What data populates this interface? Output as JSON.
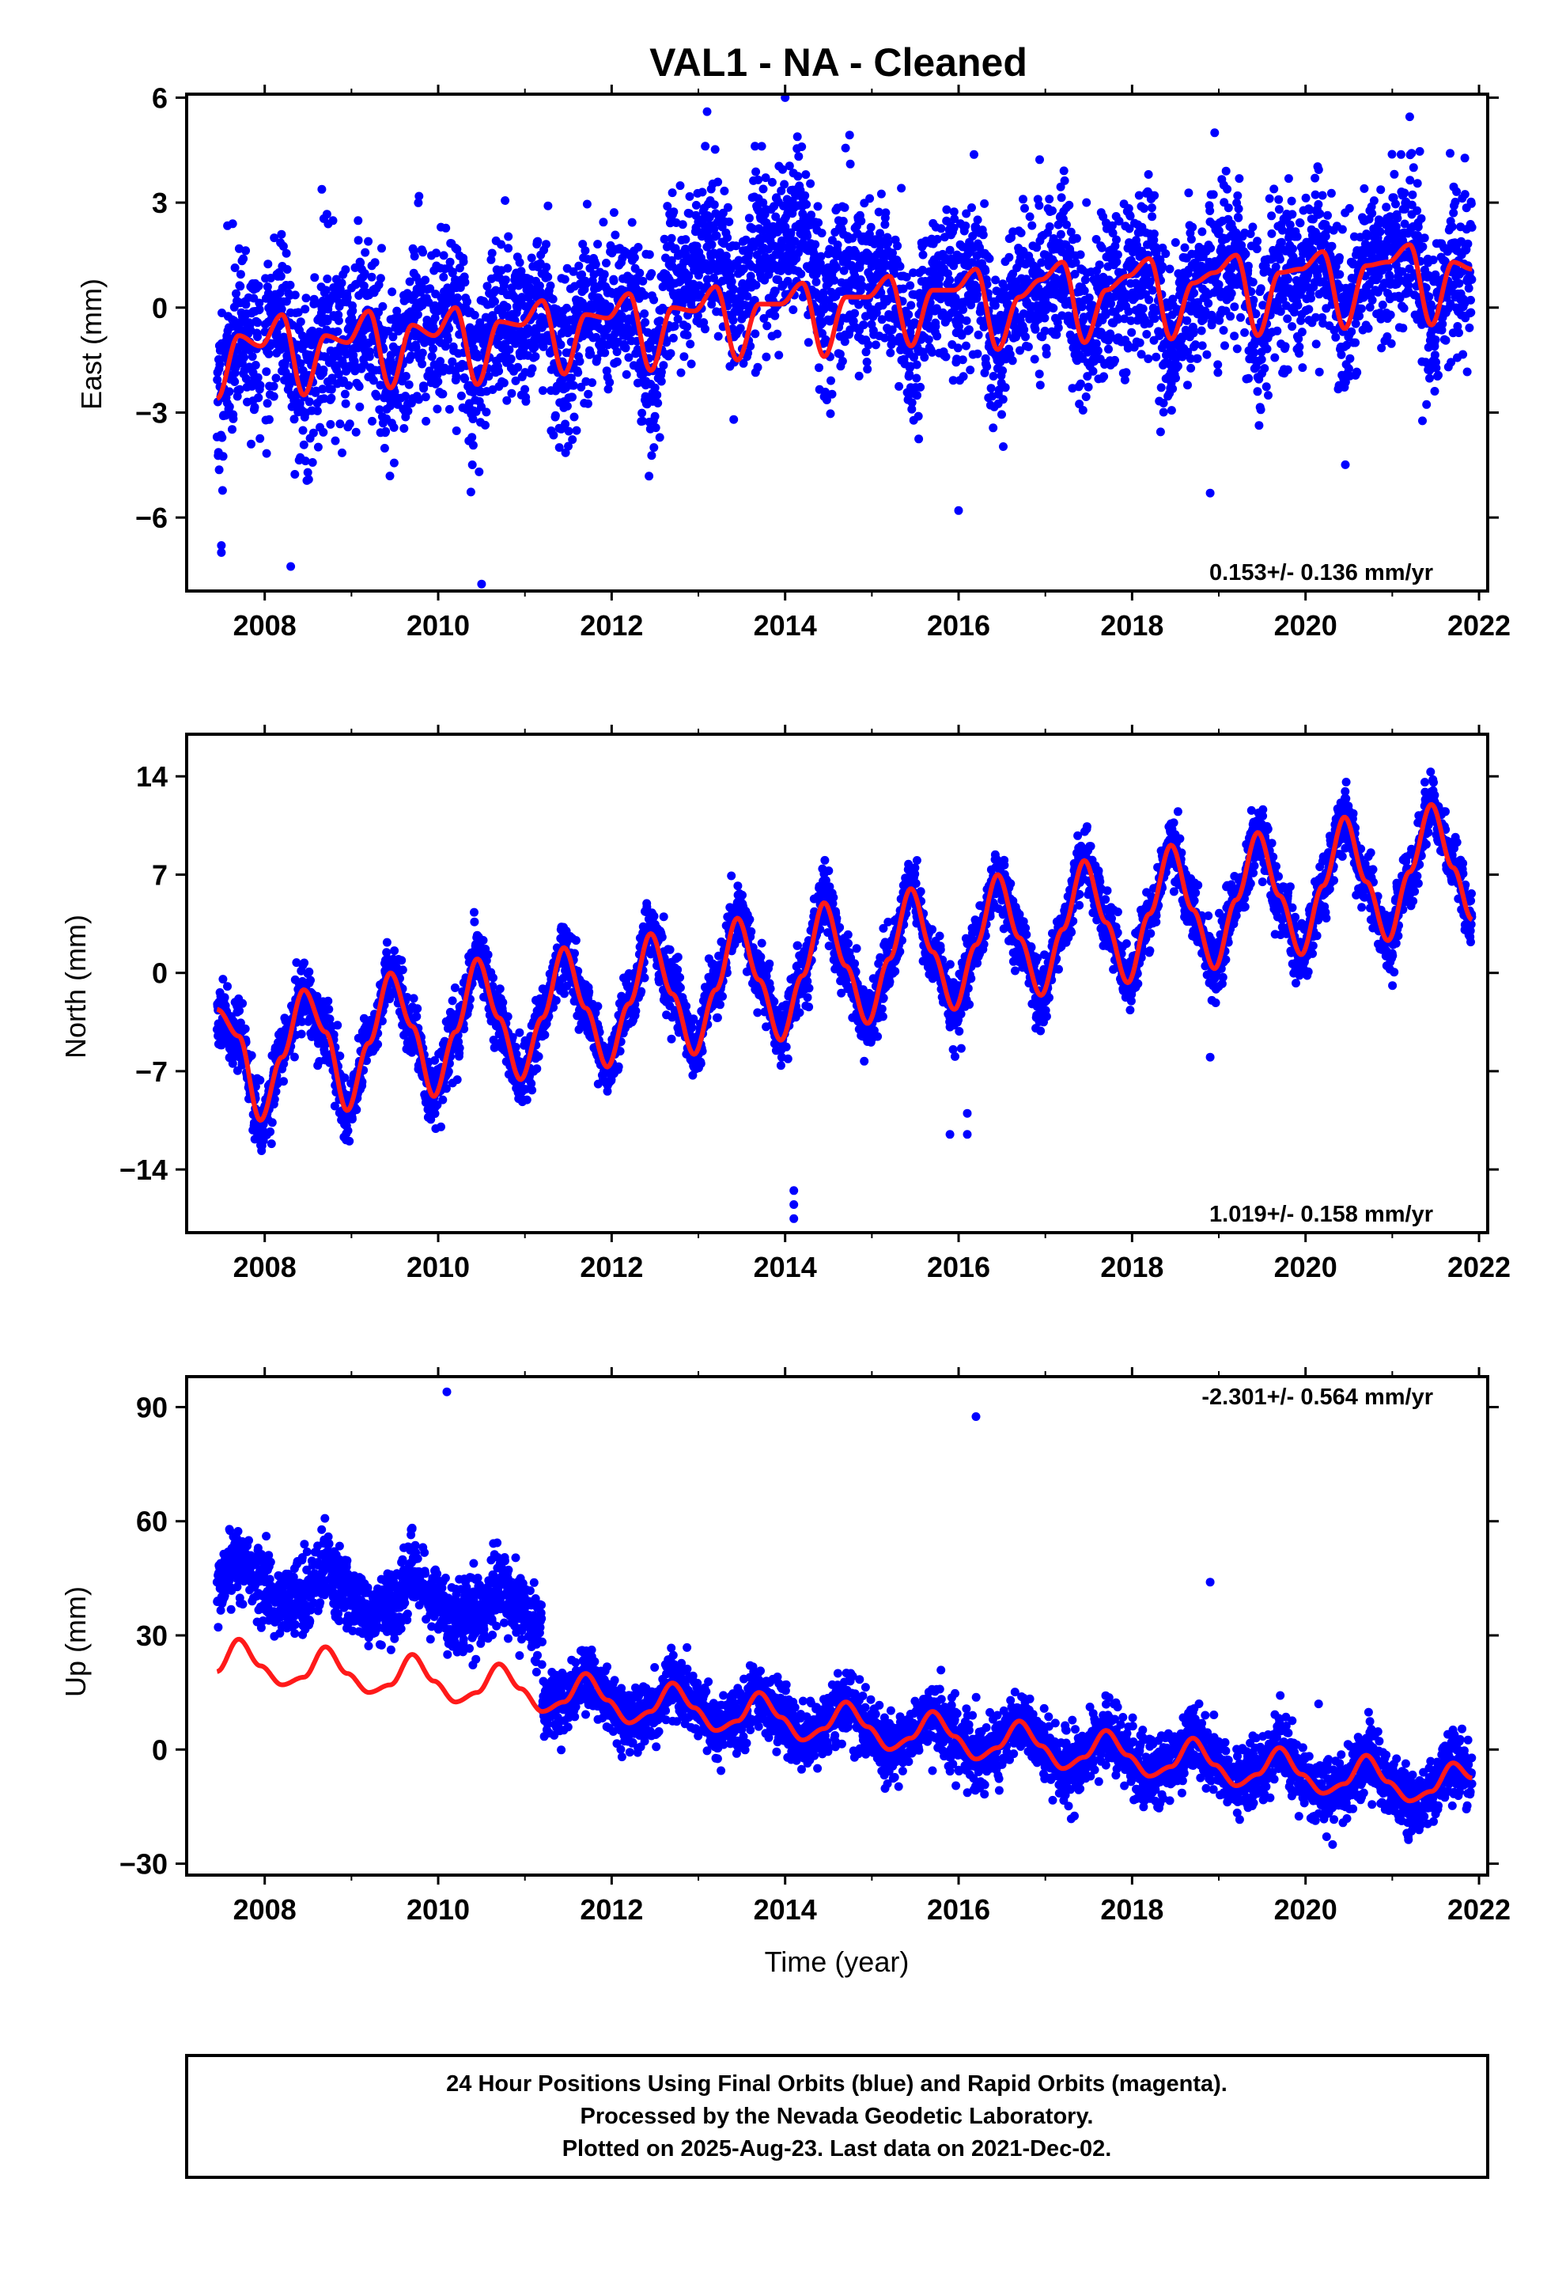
{
  "title": "VAL1  - NA - Cleaned",
  "colors": {
    "final_orbits": "#0000ff",
    "model_fit": "#ff1a1a",
    "frame": "#000000"
  },
  "caption": {
    "line1": "24 Hour Positions Using Final Orbits (blue) and Rapid Orbits (magenta).",
    "line2": "Processed by the Nevada Geodetic Laboratory.",
    "line3": "Plotted on 2025-Aug-23. Last data on 2021-Dec-02."
  },
  "chart_data": [
    {
      "type": "scatter",
      "component": "East",
      "ylabel": "East (mm)",
      "xlabel": "",
      "xlim": [
        2007.1,
        2022.1
      ],
      "ylim": [
        -8.1,
        6.1
      ],
      "x_ticks": [
        2008,
        2010,
        2012,
        2014,
        2016,
        2018,
        2020,
        2022
      ],
      "x_tick_labels": [
        "2008",
        "2010",
        "2012",
        "2014",
        "2016",
        "2018",
        "2020",
        "2022"
      ],
      "y_ticks": [
        -6,
        -3,
        0,
        3,
        6
      ],
      "y_tick_labels": [
        "−6",
        "−3",
        "0",
        "3",
        "6"
      ],
      "rate_label": "0.153+/- 0.136 mm/yr",
      "rate_position": "bottom-right",
      "data_range": [
        2007.45,
        2021.92
      ],
      "fit_curve": {
        "x": [
          2007.45,
          2007.7,
          2007.95,
          2008.2,
          2008.45,
          2008.7,
          2008.95,
          2009.2,
          2009.45,
          2009.7,
          2009.95,
          2010.2,
          2010.45,
          2010.7,
          2010.95,
          2011.2,
          2011.45,
          2011.7,
          2011.95,
          2012.2,
          2012.45,
          2012.7,
          2012.95,
          2013.2,
          2013.45,
          2013.7,
          2013.95,
          2014.2,
          2014.45,
          2014.7,
          2014.95,
          2015.2,
          2015.45,
          2015.7,
          2015.95,
          2016.2,
          2016.45,
          2016.7,
          2016.95,
          2017.2,
          2017.45,
          2017.7,
          2017.95,
          2018.2,
          2018.45,
          2018.7,
          2018.95,
          2019.2,
          2019.45,
          2019.7,
          2019.95,
          2020.2,
          2020.45,
          2020.7,
          2020.95,
          2021.2,
          2021.45,
          2021.7,
          2021.92
        ],
        "y": [
          -2.6,
          -0.8,
          -1.1,
          -0.2,
          -2.5,
          -0.8,
          -1.0,
          -0.1,
          -2.3,
          -0.5,
          -0.8,
          0.0,
          -2.2,
          -0.4,
          -0.5,
          0.2,
          -1.9,
          -0.2,
          -0.3,
          0.4,
          -1.8,
          0.0,
          -0.1,
          0.6,
          -1.5,
          0.1,
          0.1,
          0.7,
          -1.4,
          0.3,
          0.3,
          0.9,
          -1.1,
          0.5,
          0.5,
          1.1,
          -1.2,
          0.3,
          0.8,
          1.3,
          -1.0,
          0.5,
          0.9,
          1.4,
          -0.9,
          0.7,
          1.0,
          1.5,
          -0.8,
          1.0,
          1.1,
          1.6,
          -0.6,
          1.2,
          1.3,
          1.8,
          -0.5,
          1.3,
          1.1
        ]
      },
      "scatter_model": {
        "points": 4800,
        "seed": 11,
        "offset": 0,
        "step_2011": 0,
        "scatter_sd": 1.15,
        "bulge_2012_2015": 1.6,
        "outliers": [
          [
            2007.5,
            -6.8
          ],
          [
            2007.5,
            -7.0
          ],
          [
            2008.3,
            -7.4
          ],
          [
            2010.5,
            -7.9
          ],
          [
            2016.0,
            -5.8
          ],
          [
            2018.9,
            -5.3
          ],
          [
            2014.0,
            6.0
          ],
          [
            2013.1,
            5.6
          ]
        ]
      }
    },
    {
      "type": "scatter",
      "component": "North",
      "ylabel": "North (mm)",
      "xlabel": "",
      "xlim": [
        2007.1,
        2022.1
      ],
      "ylim": [
        -18.5,
        17.0
      ],
      "x_ticks": [
        2008,
        2010,
        2012,
        2014,
        2016,
        2018,
        2020,
        2022
      ],
      "x_tick_labels": [
        "2008",
        "2010",
        "2012",
        "2014",
        "2016",
        "2018",
        "2020",
        "2022"
      ],
      "y_ticks": [
        -14,
        -7,
        0,
        7,
        14
      ],
      "y_tick_labels": [
        "−14",
        "−7",
        "0",
        "7",
        "14"
      ],
      "rate_label": "1.019+/- 0.158 mm/yr",
      "rate_position": "bottom-right",
      "data_range": [
        2007.45,
        2021.92
      ],
      "fit_curve": {
        "x": [
          2007.45,
          2007.7,
          2007.95,
          2008.2,
          2008.45,
          2008.7,
          2008.95,
          2009.2,
          2009.45,
          2009.7,
          2009.95,
          2010.2,
          2010.45,
          2010.7,
          2010.95,
          2011.2,
          2011.45,
          2011.7,
          2011.95,
          2012.2,
          2012.45,
          2012.7,
          2012.95,
          2013.2,
          2013.45,
          2013.7,
          2013.95,
          2014.2,
          2014.45,
          2014.7,
          2014.95,
          2015.2,
          2015.45,
          2015.7,
          2015.95,
          2016.2,
          2016.45,
          2016.7,
          2016.95,
          2017.2,
          2017.45,
          2017.7,
          2017.95,
          2018.2,
          2018.45,
          2018.7,
          2018.95,
          2019.2,
          2019.45,
          2019.7,
          2019.95,
          2020.2,
          2020.45,
          2020.7,
          2020.95,
          2021.2,
          2021.45,
          2021.7,
          2021.92
        ],
        "y": [
          -2.6,
          -4.5,
          -10.5,
          -6.0,
          -1.2,
          -4.2,
          -9.8,
          -5.0,
          0.0,
          -3.8,
          -8.8,
          -4.2,
          1.0,
          -3.2,
          -7.6,
          -3.2,
          1.8,
          -2.5,
          -6.7,
          -2.2,
          2.8,
          -1.5,
          -5.8,
          -1.2,
          3.9,
          -0.5,
          -4.8,
          -0.2,
          5.0,
          0.5,
          -3.6,
          1.0,
          6.0,
          1.5,
          -2.6,
          2.0,
          7.0,
          2.5,
          -1.6,
          3.1,
          8.0,
          3.6,
          -0.7,
          4.2,
          9.1,
          4.5,
          0.3,
          5.2,
          10.0,
          5.5,
          1.3,
          6.2,
          11.1,
          6.5,
          2.3,
          7.2,
          12.0,
          7.5,
          3.8
        ]
      },
      "scatter_model": {
        "points": 4800,
        "seed": 23,
        "offset": 0,
        "step_2011": 0,
        "scatter_sd": 1.1,
        "bulge_2012_2015": 0.4,
        "outliers": [
          [
            2014.1,
            -16.5
          ],
          [
            2014.1,
            -15.5
          ],
          [
            2014.1,
            -17.5
          ],
          [
            2015.9,
            -11.5
          ],
          [
            2016.1,
            -10.0
          ],
          [
            2016.1,
            -11.5
          ],
          [
            2018.9,
            -6.0
          ],
          [
            2012.6,
            4.0
          ]
        ]
      }
    },
    {
      "type": "scatter",
      "component": "Up",
      "ylabel": "Up (mm)",
      "xlabel": "Time (year)",
      "xlim": [
        2007.1,
        2022.1
      ],
      "ylim": [
        -33,
        98
      ],
      "x_ticks": [
        2008,
        2010,
        2012,
        2014,
        2016,
        2018,
        2020,
        2022
      ],
      "x_tick_labels": [
        "2008",
        "2010",
        "2012",
        "2014",
        "2016",
        "2018",
        "2020",
        "2022"
      ],
      "y_ticks": [
        -30,
        0,
        30,
        60,
        90
      ],
      "y_tick_labels": [
        "−30",
        "0",
        "30",
        "60",
        "90"
      ],
      "rate_label": "-2.301+/- 0.564 mm/yr",
      "rate_position": "top-right",
      "data_range": [
        2007.45,
        2021.92
      ],
      "fit_curve": {
        "x": [
          2007.45,
          2007.7,
          2007.95,
          2008.2,
          2008.45,
          2008.7,
          2008.95,
          2009.2,
          2009.45,
          2009.7,
          2009.95,
          2010.2,
          2010.45,
          2010.7,
          2010.95,
          2011.2,
          2011.45,
          2011.7,
          2011.95,
          2012.2,
          2012.45,
          2012.7,
          2012.95,
          2013.2,
          2013.45,
          2013.7,
          2013.95,
          2014.2,
          2014.45,
          2014.7,
          2014.95,
          2015.2,
          2015.45,
          2015.7,
          2015.95,
          2016.2,
          2016.45,
          2016.7,
          2016.95,
          2017.2,
          2017.45,
          2017.7,
          2017.95,
          2018.2,
          2018.45,
          2018.7,
          2018.95,
          2019.2,
          2019.45,
          2019.7,
          2019.95,
          2020.2,
          2020.45,
          2020.7,
          2020.95,
          2021.2,
          2021.45,
          2021.7,
          2021.92
        ],
        "y": [
          20.5,
          29.0,
          22.0,
          17.0,
          19.0,
          27.0,
          20.0,
          15.0,
          17.0,
          25.0,
          18.0,
          12.5,
          15.0,
          22.5,
          16.0,
          10.0,
          12.5,
          20.0,
          13.0,
          7.0,
          10.0,
          17.5,
          11.0,
          5.0,
          7.5,
          15.0,
          8.5,
          2.5,
          5.5,
          12.5,
          6.0,
          0.0,
          3.0,
          10.0,
          3.5,
          -2.5,
          0.5,
          7.5,
          1.0,
          -5.0,
          -2.0,
          5.0,
          -1.5,
          -7.0,
          -4.5,
          3.0,
          -4.0,
          -9.5,
          -6.5,
          0.5,
          -6.5,
          -11.5,
          -9.0,
          -1.5,
          -8.5,
          -13.5,
          -11.0,
          -3.5,
          -7.5
        ]
      },
      "scatter_model": {
        "points": 4800,
        "seed": 37,
        "offset": 21,
        "step_2011": -21,
        "scatter_sd": 4.2,
        "bulge_2012_2015": 0,
        "outliers": [
          [
            2010.1,
            94.0
          ],
          [
            2016.2,
            87.5
          ],
          [
            2018.9,
            44.0
          ],
          [
            2009.7,
            58.0
          ],
          [
            2020.15,
            12.0
          ]
        ]
      }
    }
  ]
}
